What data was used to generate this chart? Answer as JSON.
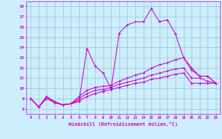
{
  "xlabel": "Windchill (Refroidissement éolien,°C)",
  "bg_color": "#cceeff",
  "line_color": "#cc00cc",
  "grid_color": "#99cccc",
  "xlim": [
    -0.5,
    23.5
  ],
  "ylim": [
    7.5,
    18.5
  ],
  "xticks": [
    0,
    1,
    2,
    3,
    4,
    5,
    6,
    7,
    8,
    9,
    10,
    11,
    12,
    13,
    14,
    15,
    16,
    17,
    18,
    19,
    20,
    21,
    22,
    23
  ],
  "yticks": [
    8,
    9,
    10,
    11,
    12,
    13,
    14,
    15,
    16,
    17,
    18
  ],
  "series": [
    {
      "x": [
        0,
        1,
        2,
        3,
        4,
        5,
        6,
        7,
        8,
        9,
        10,
        11,
        12,
        13,
        14,
        15,
        16,
        17,
        18,
        19,
        20,
        21,
        22,
        23
      ],
      "y": [
        9.0,
        8.2,
        9.2,
        8.6,
        8.4,
        8.5,
        8.7,
        13.9,
        12.2,
        11.5,
        10.0,
        15.4,
        16.2,
        16.5,
        16.5,
        17.8,
        16.5,
        16.7,
        15.3,
        13.0,
        12.0,
        11.2,
        11.2,
        10.5
      ]
    },
    {
      "x": [
        0,
        1,
        2,
        3,
        4,
        5,
        6,
        7,
        8,
        9,
        10,
        11,
        12,
        13,
        14,
        15,
        16,
        17,
        18,
        19,
        20,
        21,
        22,
        23
      ],
      "y": [
        9.0,
        8.2,
        9.2,
        8.6,
        8.4,
        8.5,
        9.2,
        9.8,
        10.1,
        10.2,
        10.3,
        10.7,
        11.0,
        11.3,
        11.5,
        12.0,
        12.3,
        12.5,
        12.8,
        13.0,
        11.8,
        11.2,
        11.2,
        10.5
      ]
    },
    {
      "x": [
        0,
        1,
        2,
        3,
        4,
        5,
        6,
        7,
        8,
        9,
        10,
        11,
        12,
        13,
        14,
        15,
        16,
        17,
        18,
        19,
        20,
        21,
        22,
        23
      ],
      "y": [
        9.0,
        8.2,
        9.2,
        8.7,
        8.4,
        8.5,
        9.0,
        9.5,
        9.8,
        9.9,
        10.1,
        10.4,
        10.6,
        10.8,
        11.0,
        11.3,
        11.5,
        11.7,
        11.9,
        12.0,
        11.0,
        11.0,
        10.7,
        10.5
      ]
    },
    {
      "x": [
        0,
        1,
        2,
        3,
        4,
        5,
        6,
        7,
        8,
        9,
        10,
        11,
        12,
        13,
        14,
        15,
        16,
        17,
        18,
        19,
        20,
        21,
        22,
        23
      ],
      "y": [
        9.0,
        8.2,
        9.0,
        8.6,
        8.4,
        8.5,
        8.8,
        9.2,
        9.5,
        9.7,
        9.9,
        10.1,
        10.3,
        10.5,
        10.6,
        10.9,
        11.0,
        11.2,
        11.4,
        11.5,
        10.5,
        10.5,
        10.5,
        10.5
      ]
    }
  ]
}
